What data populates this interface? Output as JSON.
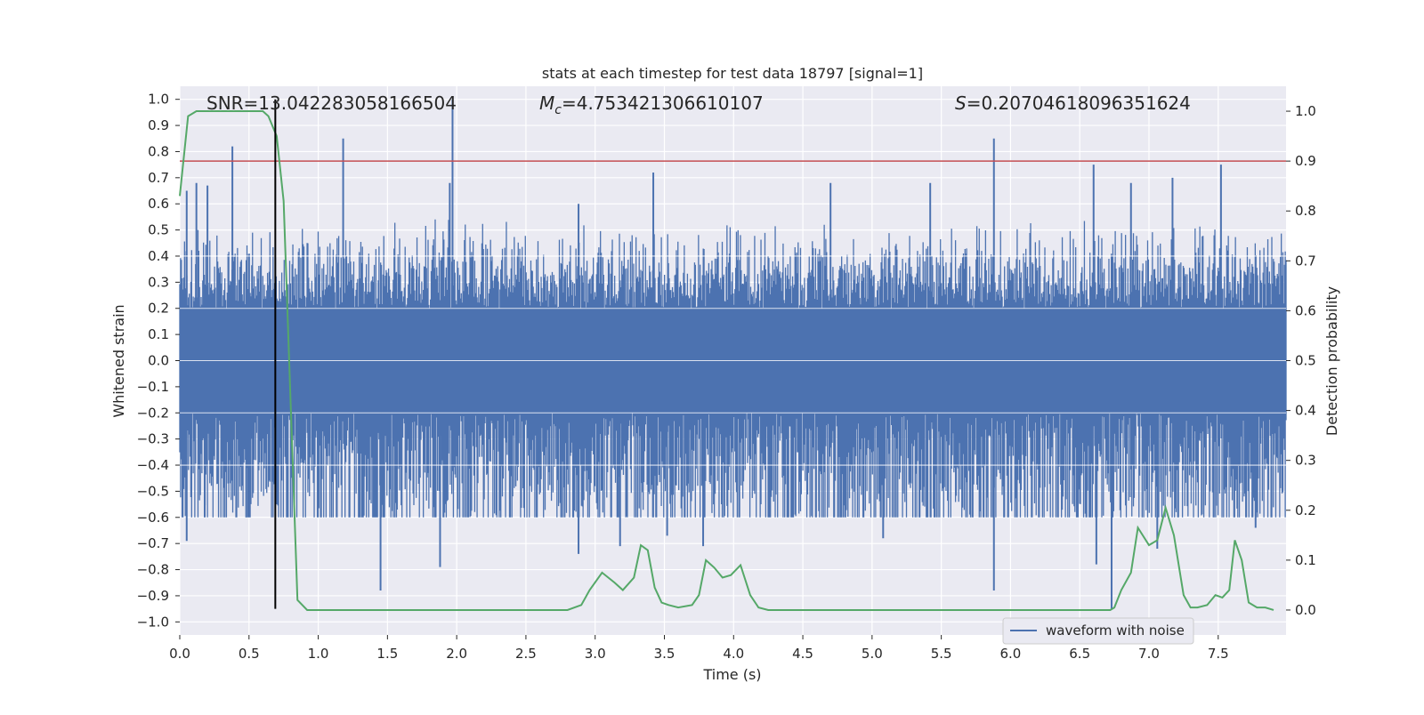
{
  "chart_data": {
    "type": "line",
    "title": "stats at each timestep for test data 18797 [signal=1]",
    "xlabel": "Time (s)",
    "ylabel_left": "Whitened strain",
    "ylabel_right": "Detection probability",
    "xlim": [
      0.0,
      7.99
    ],
    "ylim_left": [
      -1.05,
      1.05
    ],
    "ylim_right": [
      -0.05,
      1.05
    ],
    "x_ticks": [
      "0.0",
      "0.5",
      "1.0",
      "1.5",
      "2.0",
      "2.5",
      "3.0",
      "3.5",
      "4.0",
      "4.5",
      "5.0",
      "5.5",
      "6.0",
      "6.5",
      "7.0",
      "7.5"
    ],
    "y_ticks_left": [
      "1.0",
      "0.9",
      "0.8",
      "0.7",
      "0.6",
      "0.5",
      "0.4",
      "0.3",
      "0.2",
      "0.1",
      "0.0",
      "-0.1",
      "-0.2",
      "-0.3",
      "-0.4",
      "-0.5",
      "-0.6",
      "-0.7",
      "-0.8",
      "-0.9",
      "-1.0"
    ],
    "y_ticks_right": [
      "1.0",
      "0.9",
      "0.8",
      "0.7",
      "0.6",
      "0.5",
      "0.4",
      "0.3",
      "0.2",
      "0.1",
      "0.0"
    ],
    "annotations": {
      "snr": "SNR=13.042283058166504",
      "mc_symbol": "M",
      "mc_sub": "c",
      "mc_value": "=4.753421306610107",
      "s_symbol": "S",
      "s_value": "=0.20704618096351624"
    },
    "threshold": {
      "value": 0.9,
      "axis": "right",
      "color": "#c44e52"
    },
    "vertical_marker": {
      "x": 0.69,
      "from": -0.95,
      "to": 1.0,
      "color": "#000000"
    },
    "grid": true,
    "legend": {
      "placement": "lower-right",
      "entries": [
        "waveform with noise"
      ]
    },
    "series": [
      {
        "name": "waveform with noise",
        "axis": "left",
        "color": "#4c72b0",
        "style": "dense-noise",
        "envelope": {
          "core_low": -0.2,
          "core_high": 0.2,
          "typical_low": -0.45,
          "typical_high": 0.45
        },
        "peaks": [
          {
            "x": 0.05,
            "y": 0.65
          },
          {
            "x": 0.12,
            "y": 0.68
          },
          {
            "x": 0.2,
            "y": 0.67
          },
          {
            "x": 0.38,
            "y": 0.82
          },
          {
            "x": 1.18,
            "y": 0.85
          },
          {
            "x": 1.97,
            "y": 1.0
          },
          {
            "x": 1.95,
            "y": 0.68
          },
          {
            "x": 3.42,
            "y": 0.72
          },
          {
            "x": 4.7,
            "y": 0.68
          },
          {
            "x": 5.42,
            "y": 0.68
          },
          {
            "x": 5.88,
            "y": 0.85
          },
          {
            "x": 6.6,
            "y": 0.75
          },
          {
            "x": 7.52,
            "y": 0.75
          },
          {
            "x": 7.17,
            "y": 0.7
          },
          {
            "x": 2.88,
            "y": 0.6
          },
          {
            "x": 6.87,
            "y": 0.68
          }
        ],
        "troughs": [
          {
            "x": 0.05,
            "y": -0.69
          },
          {
            "x": 0.18,
            "y": -0.6
          },
          {
            "x": 0.48,
            "y": -0.6
          },
          {
            "x": 1.45,
            "y": -0.88
          },
          {
            "x": 1.88,
            "y": -0.79
          },
          {
            "x": 2.88,
            "y": -0.74
          },
          {
            "x": 3.18,
            "y": -0.71
          },
          {
            "x": 3.78,
            "y": -0.71
          },
          {
            "x": 5.88,
            "y": -0.88
          },
          {
            "x": 6.73,
            "y": -0.95
          },
          {
            "x": 6.62,
            "y": -0.78
          },
          {
            "x": 7.06,
            "y": -0.72
          },
          {
            "x": 7.77,
            "y": -0.64
          },
          {
            "x": 5.08,
            "y": -0.68
          },
          {
            "x": 3.52,
            "y": -0.67
          },
          {
            "x": 0.7,
            "y": -0.55
          }
        ]
      },
      {
        "name": "",
        "axis": "right",
        "color": "#55a868",
        "x": [
          0.0,
          0.06,
          0.12,
          0.2,
          0.3,
          0.4,
          0.5,
          0.6,
          0.64,
          0.7,
          0.75,
          0.8,
          0.85,
          0.92,
          1.0,
          1.2,
          1.4,
          1.6,
          1.8,
          2.0,
          2.2,
          2.4,
          2.6,
          2.8,
          2.9,
          2.96,
          3.05,
          3.14,
          3.2,
          3.28,
          3.33,
          3.38,
          3.43,
          3.48,
          3.53,
          3.6,
          3.7,
          3.75,
          3.8,
          3.86,
          3.92,
          3.98,
          4.05,
          4.12,
          4.18,
          4.25,
          4.4,
          4.6,
          4.8,
          5.0,
          5.2,
          5.4,
          5.6,
          5.8,
          6.0,
          6.2,
          6.4,
          6.6,
          6.72,
          6.75,
          6.8,
          6.87,
          6.92,
          7.0,
          7.06,
          7.12,
          7.18,
          7.25,
          7.3,
          7.35,
          7.42,
          7.48,
          7.53,
          7.58,
          7.62,
          7.67,
          7.72,
          7.78,
          7.84,
          7.9
        ],
        "values": [
          0.83,
          0.99,
          1.0,
          1.0,
          1.0,
          1.0,
          1.0,
          1.0,
          0.99,
          0.95,
          0.82,
          0.42,
          0.02,
          0.0,
          0.0,
          0.0,
          0.0,
          0.0,
          0.0,
          0.0,
          0.0,
          0.0,
          0.0,
          0.0,
          0.01,
          0.04,
          0.075,
          0.055,
          0.04,
          0.065,
          0.13,
          0.12,
          0.045,
          0.015,
          0.01,
          0.005,
          0.01,
          0.03,
          0.1,
          0.085,
          0.065,
          0.07,
          0.09,
          0.03,
          0.005,
          0.0,
          0.0,
          0.0,
          0.0,
          0.0,
          0.0,
          0.0,
          0.0,
          0.0,
          0.0,
          0.0,
          0.0,
          0.0,
          0.0,
          0.005,
          0.04,
          0.075,
          0.165,
          0.13,
          0.14,
          0.205,
          0.15,
          0.03,
          0.005,
          0.005,
          0.01,
          0.03,
          0.025,
          0.04,
          0.14,
          0.1,
          0.015,
          0.005,
          0.005,
          0.0
        ]
      }
    ]
  }
}
